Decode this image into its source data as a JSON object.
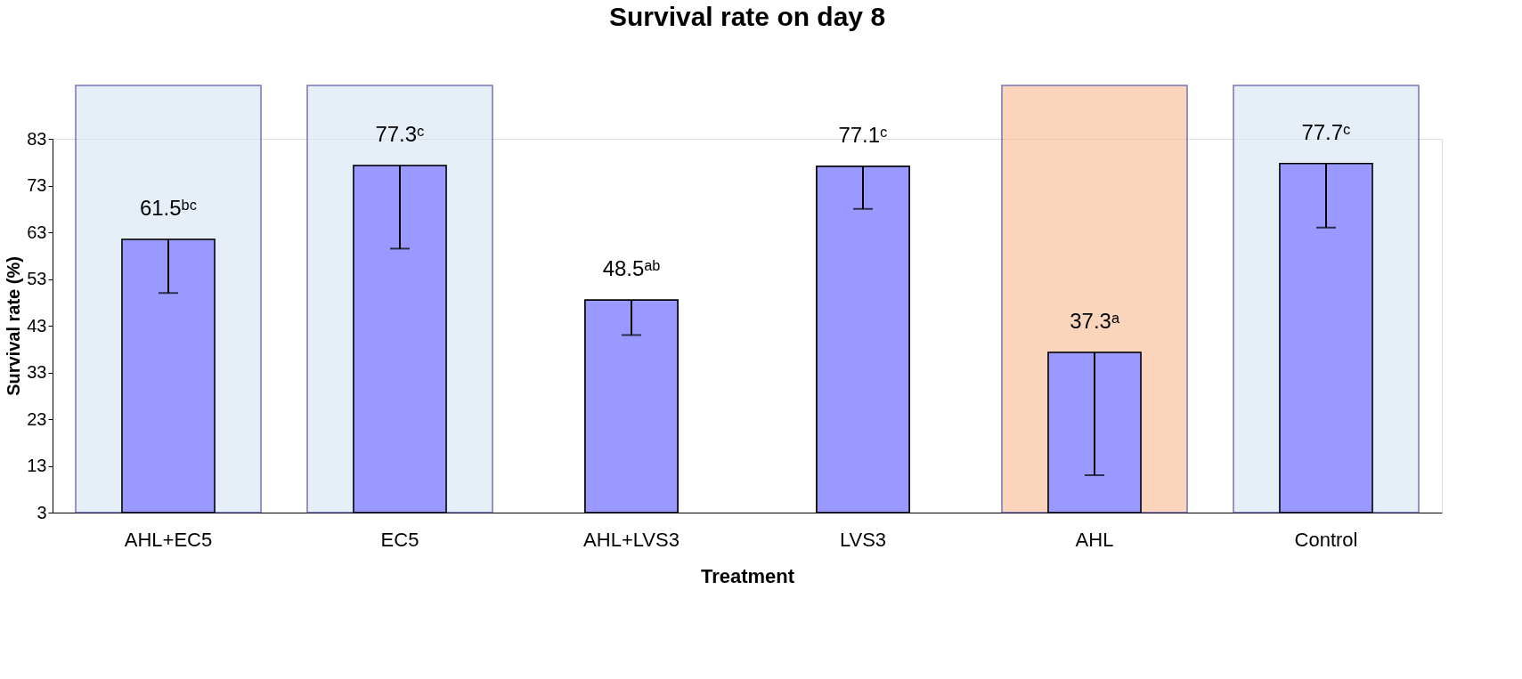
{
  "chart_data": {
    "type": "bar",
    "title": "Survival rate on day 8",
    "xlabel": "Treatment",
    "ylabel": "Survival rate (%)",
    "categories": [
      "AHL+EC5",
      "EC5",
      "AHL+LVS3",
      "LVS3",
      "AHL",
      "Control"
    ],
    "values": [
      61.5,
      77.3,
      48.5,
      77.1,
      37.3,
      77.7
    ],
    "errors": [
      [
        50,
        61.5
      ],
      [
        59.5,
        77.3
      ],
      [
        41,
        48.5
      ],
      [
        68,
        77.1
      ],
      [
        11,
        37.3
      ],
      [
        64,
        77.7
      ]
    ],
    "value_labels": [
      "61.5ᵇᶜ",
      "77.3ᶜ",
      "48.5ᵃᵇ",
      "77.1ᶜ",
      "37.3ᵃ",
      "77.7ᶜ"
    ],
    "color": "#9999ff",
    "ylim": [
      3,
      83
    ],
    "yticks": [
      3,
      13,
      23,
      33,
      43,
      53,
      63,
      73,
      83
    ],
    "grid": false,
    "bands": [
      {
        "axis": "x",
        "from": "AHL+EC5",
        "to": "AHL+EC5",
        "color": "#d6e6f5"
      },
      {
        "axis": "x",
        "from": "EC5",
        "to": "EC5",
        "color": "#d6e6f5"
      },
      {
        "axis": "x",
        "from": "AHL",
        "to": "AHL",
        "color": "#f8b98f"
      },
      {
        "axis": "x",
        "from": "Control",
        "to": "Control",
        "color": "#d6e6f5"
      }
    ]
  }
}
